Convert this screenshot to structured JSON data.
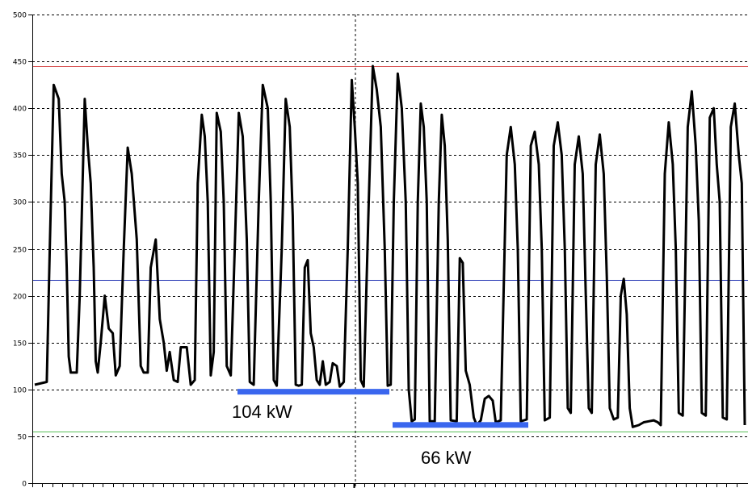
{
  "chart_data": {
    "type": "line",
    "title": "",
    "xlabel": "",
    "ylabel": "",
    "ylim": [
      0,
      500
    ],
    "y_ticks": [
      "0",
      "50",
      "100",
      "150",
      "200",
      "250",
      "300",
      "350",
      "400",
      "450",
      "500"
    ],
    "grid": true,
    "series": [
      {
        "color": "#000000",
        "keypoints": [
          [
            0.0,
            105
          ],
          [
            1.2,
            108
          ],
          [
            1.5,
            250
          ],
          [
            1.9,
            425
          ],
          [
            2.4,
            410
          ],
          [
            2.7,
            330
          ],
          [
            3.0,
            300
          ],
          [
            3.2,
            230
          ],
          [
            3.4,
            135
          ],
          [
            3.6,
            118
          ],
          [
            4.2,
            118
          ],
          [
            4.5,
            200
          ],
          [
            5.0,
            410
          ],
          [
            5.3,
            360
          ],
          [
            5.6,
            320
          ],
          [
            5.9,
            230
          ],
          [
            6.1,
            130
          ],
          [
            6.3,
            118
          ],
          [
            6.6,
            150
          ],
          [
            7.0,
            200
          ],
          [
            7.4,
            165
          ],
          [
            7.8,
            160
          ],
          [
            8.1,
            115
          ],
          [
            8.5,
            125
          ],
          [
            8.9,
            250
          ],
          [
            9.3,
            358
          ],
          [
            9.7,
            330
          ],
          [
            10.2,
            260
          ],
          [
            10.6,
            125
          ],
          [
            10.9,
            118
          ],
          [
            11.3,
            118
          ],
          [
            11.6,
            230
          ],
          [
            12.1,
            260
          ],
          [
            12.5,
            175
          ],
          [
            12.9,
            150
          ],
          [
            13.2,
            120
          ],
          [
            13.5,
            140
          ],
          [
            13.9,
            110
          ],
          [
            14.3,
            108
          ],
          [
            14.6,
            145
          ],
          [
            15.2,
            145
          ],
          [
            15.6,
            105
          ],
          [
            16.0,
            110
          ],
          [
            16.3,
            320
          ],
          [
            16.7,
            393
          ],
          [
            17.0,
            370
          ],
          [
            17.3,
            300
          ],
          [
            17.6,
            115
          ],
          [
            17.9,
            140
          ],
          [
            18.2,
            395
          ],
          [
            18.6,
            375
          ],
          [
            18.9,
            300
          ],
          [
            19.2,
            125
          ],
          [
            19.6,
            115
          ],
          [
            20.0,
            250
          ],
          [
            20.4,
            395
          ],
          [
            20.8,
            370
          ],
          [
            21.2,
            260
          ],
          [
            21.5,
            108
          ],
          [
            21.9,
            105
          ],
          [
            22.4,
            300
          ],
          [
            22.8,
            425
          ],
          [
            23.3,
            400
          ],
          [
            23.6,
            300
          ],
          [
            23.9,
            110
          ],
          [
            24.2,
            104
          ],
          [
            24.7,
            250
          ],
          [
            25.1,
            410
          ],
          [
            25.5,
            380
          ],
          [
            25.8,
            285
          ],
          [
            26.1,
            105
          ],
          [
            26.4,
            104
          ],
          [
            26.7,
            105
          ],
          [
            27.0,
            230
          ],
          [
            27.3,
            238
          ],
          [
            27.6,
            160
          ],
          [
            27.9,
            145
          ],
          [
            28.2,
            110
          ],
          [
            28.5,
            105
          ],
          [
            28.8,
            130
          ],
          [
            29.1,
            105
          ],
          [
            29.5,
            108
          ],
          [
            29.8,
            128
          ],
          [
            30.2,
            125
          ],
          [
            30.5,
            103
          ],
          [
            30.9,
            108
          ],
          [
            31.3,
            250
          ],
          [
            31.7,
            430
          ],
          [
            32.0,
            380
          ],
          [
            32.3,
            320
          ],
          [
            32.6,
            110
          ],
          [
            32.9,
            103
          ],
          [
            33.4,
            300
          ],
          [
            33.8,
            445
          ],
          [
            34.2,
            420
          ],
          [
            34.6,
            380
          ],
          [
            35.0,
            250
          ],
          [
            35.3,
            104
          ],
          [
            35.6,
            105
          ],
          [
            35.9,
            300
          ],
          [
            36.3,
            437
          ],
          [
            36.7,
            400
          ],
          [
            37.1,
            300
          ],
          [
            37.4,
            100
          ],
          [
            37.7,
            66
          ],
          [
            38.0,
            68
          ],
          [
            38.3,
            300
          ],
          [
            38.6,
            405
          ],
          [
            38.9,
            380
          ],
          [
            39.2,
            300
          ],
          [
            39.5,
            66
          ],
          [
            40.0,
            66
          ],
          [
            40.4,
            300
          ],
          [
            40.7,
            393
          ],
          [
            41.0,
            360
          ],
          [
            41.3,
            260
          ],
          [
            41.6,
            67
          ],
          [
            42.2,
            66
          ],
          [
            42.5,
            240
          ],
          [
            42.8,
            235
          ],
          [
            43.1,
            120
          ],
          [
            43.5,
            105
          ],
          [
            43.9,
            70
          ],
          [
            44.2,
            62
          ],
          [
            44.6,
            67
          ],
          [
            45.0,
            90
          ],
          [
            45.4,
            93
          ],
          [
            45.8,
            88
          ],
          [
            46.1,
            65
          ],
          [
            46.6,
            67
          ],
          [
            47.2,
            350
          ],
          [
            47.6,
            380
          ],
          [
            48.0,
            340
          ],
          [
            48.3,
            250
          ],
          [
            48.6,
            66
          ],
          [
            49.2,
            68
          ],
          [
            49.6,
            360
          ],
          [
            50.0,
            375
          ],
          [
            50.4,
            340
          ],
          [
            50.7,
            250
          ],
          [
            51.0,
            67
          ],
          [
            51.5,
            70
          ],
          [
            51.9,
            360
          ],
          [
            52.3,
            385
          ],
          [
            52.7,
            350
          ],
          [
            53.0,
            250
          ],
          [
            53.3,
            80
          ],
          [
            53.6,
            75
          ],
          [
            54.0,
            340
          ],
          [
            54.4,
            370
          ],
          [
            54.8,
            330
          ],
          [
            55.1,
            200
          ],
          [
            55.4,
            80
          ],
          [
            55.7,
            75
          ],
          [
            56.1,
            340
          ],
          [
            56.5,
            372
          ],
          [
            56.9,
            330
          ],
          [
            57.2,
            220
          ],
          [
            57.5,
            80
          ],
          [
            57.9,
            68
          ],
          [
            58.3,
            70
          ],
          [
            58.6,
            200
          ],
          [
            58.9,
            218
          ],
          [
            59.2,
            180
          ],
          [
            59.5,
            80
          ],
          [
            59.8,
            60
          ],
          [
            60.4,
            62
          ],
          [
            60.9,
            65
          ],
          [
            61.4,
            66
          ],
          [
            61.9,
            67
          ],
          [
            62.3,
            65
          ],
          [
            62.6,
            62
          ],
          [
            63.0,
            330
          ],
          [
            63.4,
            385
          ],
          [
            63.8,
            340
          ],
          [
            64.1,
            250
          ],
          [
            64.4,
            75
          ],
          [
            64.8,
            72
          ],
          [
            65.3,
            380
          ],
          [
            65.7,
            418
          ],
          [
            66.1,
            360
          ],
          [
            66.4,
            280
          ],
          [
            66.7,
            75
          ],
          [
            67.1,
            72
          ],
          [
            67.5,
            390
          ],
          [
            67.9,
            400
          ],
          [
            68.2,
            340
          ],
          [
            68.5,
            300
          ],
          [
            68.8,
            70
          ],
          [
            69.2,
            68
          ],
          [
            69.6,
            380
          ],
          [
            70.0,
            405
          ],
          [
            70.4,
            350
          ],
          [
            70.7,
            320
          ],
          [
            71.0,
            62
          ]
        ]
      }
    ],
    "reference_lines": [
      {
        "value": 445,
        "color": "#d85050"
      },
      {
        "value": 217,
        "color": "#1e2fb0"
      },
      {
        "value": 55,
        "color": "#5ac05a"
      }
    ],
    "annotations": [
      {
        "text": "104 kW",
        "value": 104,
        "color": "#3a66ee"
      },
      {
        "text": "66 kW",
        "value": 66,
        "color": "#3a66ee"
      }
    ]
  }
}
